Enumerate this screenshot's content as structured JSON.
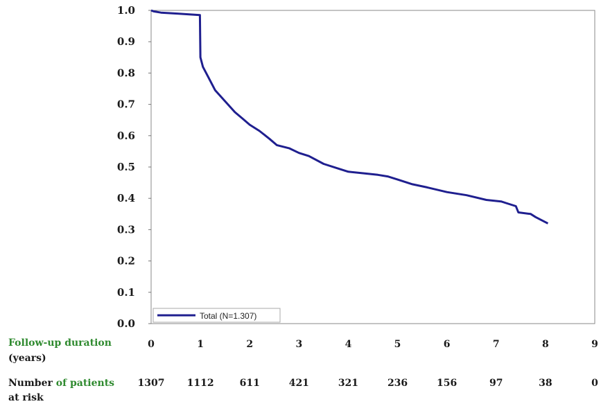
{
  "chart_data": {
    "type": "line",
    "step": true,
    "xlim": [
      0,
      9
    ],
    "ylim": [
      0,
      1.0
    ],
    "x_ticks": [
      "0",
      "1",
      "2",
      "3",
      "4",
      "5",
      "6",
      "7",
      "8",
      "9"
    ],
    "y_ticks": [
      "0.0",
      "0.1",
      "0.2",
      "0.3",
      "0.4",
      "0.5",
      "0.6",
      "0.7",
      "0.8",
      "0.9",
      "1.0"
    ],
    "series": [
      {
        "name": "Total (N=1.307)",
        "color": "#1f1f8f",
        "x": [
          0,
          0.05,
          0.2,
          0.5,
          0.8,
          0.99,
          1.0,
          1.05,
          1.15,
          1.3,
          1.5,
          1.7,
          1.85,
          2.0,
          2.2,
          2.4,
          2.55,
          2.8,
          3.0,
          3.2,
          3.5,
          3.8,
          4.0,
          4.3,
          4.6,
          4.8,
          5.0,
          5.3,
          5.6,
          6.0,
          6.4,
          6.8,
          7.1,
          7.2,
          7.4,
          7.45,
          7.7,
          7.8,
          8.05
        ],
        "y": [
          1.0,
          0.997,
          0.993,
          0.99,
          0.987,
          0.985,
          0.85,
          0.82,
          0.79,
          0.745,
          0.71,
          0.675,
          0.655,
          0.635,
          0.615,
          0.59,
          0.57,
          0.56,
          0.545,
          0.535,
          0.51,
          0.495,
          0.485,
          0.48,
          0.475,
          0.47,
          0.46,
          0.445,
          0.435,
          0.42,
          0.41,
          0.395,
          0.39,
          0.385,
          0.375,
          0.355,
          0.35,
          0.34,
          0.32
        ]
      }
    ],
    "legend": {
      "label": "Total (N=1.307)",
      "placement": "bottom-left"
    },
    "risk_table": {
      "x_label_line1_a": "Follow-up duration",
      "x_label_line2": "(years)",
      "risk_label_part1": "Number",
      "risk_label_part2": " of patients",
      "risk_label_line2": "at risk",
      "values": [
        "1307",
        "1112",
        "611",
        "421",
        "321",
        "236",
        "156",
        "97",
        "38",
        "0"
      ]
    }
  },
  "colors": {
    "line": "#1f1f8f",
    "green_label": "#2f8a2f",
    "axis": "#555555"
  }
}
